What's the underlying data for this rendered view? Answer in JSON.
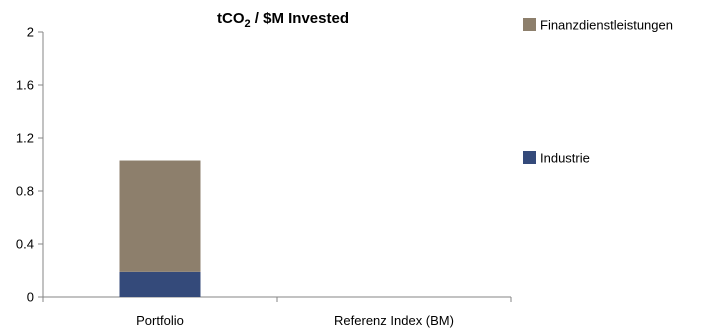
{
  "chart_data": {
    "type": "bar",
    "stacked": true,
    "title": {
      "prefix": "tCO",
      "subscript": "2",
      "suffix": " / $M Invested"
    },
    "xlabel": "",
    "ylabel": "",
    "categories": [
      "Portfolio",
      "Referenz Index (BM)"
    ],
    "series": [
      {
        "name": "Industrie",
        "values": [
          0.19,
          0
        ],
        "color": "#344a7a"
      },
      {
        "name": "Finanzdienstleistungen",
        "values": [
          0.84,
          0
        ],
        "color": "#8d7f6c"
      }
    ],
    "ylim": [
      0,
      2
    ],
    "yticks": [
      "0",
      "0.4",
      "0.8",
      "1.2",
      "1.6",
      "2"
    ],
    "grid": false,
    "legend_position": "right"
  }
}
